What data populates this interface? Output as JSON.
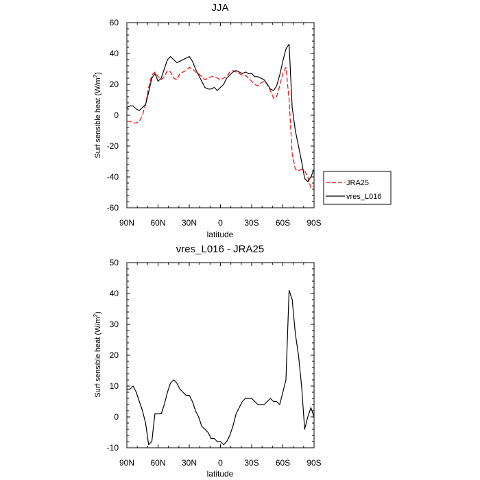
{
  "chart_data": [
    {
      "type": "line",
      "title": "JJA",
      "xlabel": "latitude",
      "ylabel_main": "Surf sensible heat (W/m",
      "ylabel_sup": "2",
      "ylabel_tail": ")",
      "xlim": [
        -90,
        90
      ],
      "ylim": [
        -60,
        60
      ],
      "x_ticks": [
        {
          "value": -90,
          "label": "90N"
        },
        {
          "value": -60,
          "label": "60N"
        },
        {
          "value": -30,
          "label": "30N"
        },
        {
          "value": 0,
          "label": "0"
        },
        {
          "value": 30,
          "label": "30S"
        },
        {
          "value": 60,
          "label": "60S"
        },
        {
          "value": 90,
          "label": "90S"
        }
      ],
      "y_ticks": [
        {
          "value": -60,
          "label": "-60"
        },
        {
          "value": -40,
          "label": "-40"
        },
        {
          "value": -20,
          "label": "-20"
        },
        {
          "value": 0,
          "label": "0"
        },
        {
          "value": 20,
          "label": "20"
        },
        {
          "value": 40,
          "label": "40"
        },
        {
          "value": 60,
          "label": "60"
        }
      ],
      "legend_position": "right",
      "series": [
        {
          "name": "JRA25",
          "color": "#ff0000",
          "dash": true,
          "x": [
            -90,
            -87,
            -84,
            -81,
            -78,
            -75,
            -72,
            -69,
            -66,
            -63,
            -60,
            -57,
            -54,
            -51,
            -48,
            -45,
            -42,
            -39,
            -36,
            -33,
            -30,
            -27,
            -24,
            -21,
            -18,
            -15,
            -12,
            -9,
            -6,
            -3,
            0,
            3,
            6,
            9,
            12,
            15,
            18,
            21,
            24,
            27,
            30,
            33,
            36,
            39,
            42,
            45,
            48,
            51,
            54,
            57,
            60,
            63,
            66,
            69,
            72,
            75,
            78,
            81,
            84,
            87,
            90
          ],
          "y": [
            -4,
            -4,
            -5,
            -5,
            -4,
            0,
            7,
            18,
            26,
            28,
            25,
            23,
            25,
            29,
            28,
            24,
            23,
            27,
            28,
            29,
            31,
            30,
            28,
            27,
            25,
            23,
            24,
            25,
            25,
            24,
            23,
            24,
            25,
            28,
            29,
            28,
            27,
            26,
            26,
            24,
            22,
            20,
            19,
            21,
            22,
            20,
            16,
            11,
            12,
            19,
            27,
            31,
            10,
            -25,
            -35,
            -36,
            -35,
            -36,
            -40,
            -47,
            -46
          ]
        },
        {
          "name": "vres_L016",
          "color": "#000000",
          "dash": false,
          "x": [
            -90,
            -87,
            -84,
            -81,
            -78,
            -75,
            -72,
            -69,
            -66,
            -63,
            -60,
            -57,
            -54,
            -51,
            -48,
            -45,
            -42,
            -39,
            -36,
            -33,
            -30,
            -27,
            -24,
            -21,
            -18,
            -15,
            -12,
            -9,
            -6,
            -3,
            0,
            3,
            6,
            9,
            12,
            15,
            18,
            21,
            24,
            27,
            30,
            33,
            36,
            39,
            42,
            45,
            48,
            51,
            54,
            57,
            60,
            63,
            66,
            69,
            72,
            75,
            78,
            81,
            84,
            87,
            90
          ],
          "y": [
            5,
            6,
            6,
            4,
            3,
            5,
            7,
            15,
            24,
            27,
            22,
            24,
            30,
            36,
            38,
            36,
            34,
            35,
            36,
            37,
            38,
            35,
            30,
            26,
            22,
            18,
            17,
            17,
            18,
            16,
            18,
            20,
            24,
            26,
            28,
            29,
            28,
            27,
            28,
            27,
            27,
            25,
            25,
            24,
            23,
            20,
            17,
            16,
            19,
            26,
            35,
            43,
            46,
            5,
            -10,
            -20,
            -30,
            -41,
            -43,
            -40,
            -35
          ]
        }
      ]
    },
    {
      "type": "line",
      "title": "vres_L016 - JRA25",
      "xlabel": "latitude",
      "ylabel_main": "Surf sensible heat (W/m",
      "ylabel_sup": "2",
      "ylabel_tail": ")",
      "xlim": [
        -90,
        90
      ],
      "ylim": [
        -10,
        50
      ],
      "x_ticks": [
        {
          "value": -90,
          "label": "90N"
        },
        {
          "value": -60,
          "label": "60N"
        },
        {
          "value": -30,
          "label": "30N"
        },
        {
          "value": 0,
          "label": "0"
        },
        {
          "value": 30,
          "label": "30S"
        },
        {
          "value": 60,
          "label": "60S"
        },
        {
          "value": 90,
          "label": "90S"
        }
      ],
      "y_ticks": [
        {
          "value": -10,
          "label": "-10"
        },
        {
          "value": 0,
          "label": "0"
        },
        {
          "value": 10,
          "label": "10"
        },
        {
          "value": 20,
          "label": "20"
        },
        {
          "value": 30,
          "label": "30"
        },
        {
          "value": 40,
          "label": "40"
        },
        {
          "value": 50,
          "label": "50"
        }
      ],
      "series": [
        {
          "color": "#000000",
          "dash": false,
          "x": [
            -90,
            -87,
            -84,
            -81,
            -78,
            -75,
            -72,
            -69,
            -66,
            -63,
            -60,
            -57,
            -54,
            -51,
            -48,
            -45,
            -42,
            -39,
            -36,
            -33,
            -30,
            -27,
            -24,
            -21,
            -18,
            -15,
            -12,
            -9,
            -6,
            -3,
            0,
            3,
            6,
            9,
            12,
            15,
            18,
            21,
            24,
            27,
            30,
            33,
            36,
            39,
            42,
            45,
            48,
            51,
            54,
            57,
            60,
            63,
            66,
            69,
            72,
            75,
            78,
            81,
            84,
            87,
            90
          ],
          "y": [
            9,
            9,
            10,
            8,
            5,
            2,
            -2,
            -9,
            -8,
            1,
            1,
            1,
            4,
            8,
            11,
            12,
            11,
            9,
            8,
            7,
            7,
            5,
            2,
            0,
            -3,
            -4,
            -5,
            -7,
            -7,
            -8,
            -8,
            -9,
            -8,
            -6,
            -3,
            1,
            3,
            5,
            6,
            6,
            6,
            5,
            4,
            4,
            4,
            5,
            6,
            5,
            5,
            4,
            8,
            12,
            41,
            38,
            27,
            20,
            10,
            -4,
            0,
            3,
            0
          ]
        }
      ]
    }
  ]
}
